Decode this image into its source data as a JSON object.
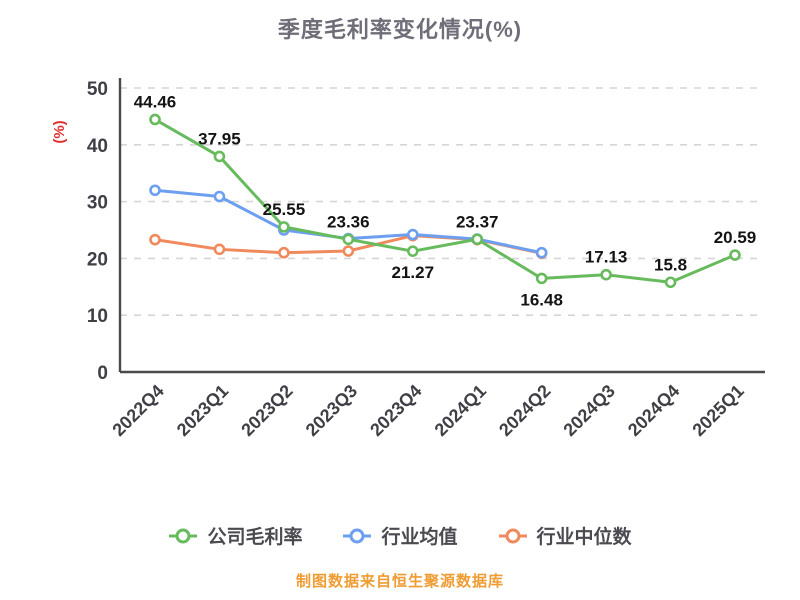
{
  "footer": "制图数据来自恒生聚源数据库",
  "chart_data": {
    "type": "line",
    "title": "季度毛利率变化情况(%)",
    "ylabel": "(%)",
    "ylabel_color": "#e03131",
    "categories": [
      "2022Q4",
      "2023Q1",
      "2023Q2",
      "2023Q3",
      "2023Q4",
      "2024Q1",
      "2024Q2",
      "2024Q3",
      "2024Q4",
      "2025Q1"
    ],
    "series": [
      {
        "name": "公司毛利率",
        "color": "#67bb5c",
        "values": [
          44.46,
          37.95,
          25.55,
          23.36,
          21.27,
          23.37,
          16.48,
          17.13,
          15.8,
          20.59
        ],
        "show_labels": true,
        "label_positions": [
          "top",
          "top",
          "top",
          "top",
          "bottom",
          "top",
          "bottom",
          "top",
          "top",
          "top"
        ]
      },
      {
        "name": "行业均值",
        "color": "#6d9ff1",
        "values": [
          32.0,
          30.9,
          25.0,
          23.5,
          24.2,
          23.4,
          21.0,
          null,
          null,
          null
        ],
        "show_labels": false
      },
      {
        "name": "行业中位数",
        "color": "#f08a5c",
        "values": [
          23.3,
          21.6,
          21.0,
          21.3,
          24.0,
          23.3,
          20.9,
          null,
          null,
          null
        ],
        "show_labels": false
      }
    ],
    "ylim": [
      0,
      50
    ],
    "yticks": [
      0,
      10,
      20,
      30,
      40,
      50
    ],
    "grid": "dashed-horizontal",
    "legend_position": "bottom"
  }
}
